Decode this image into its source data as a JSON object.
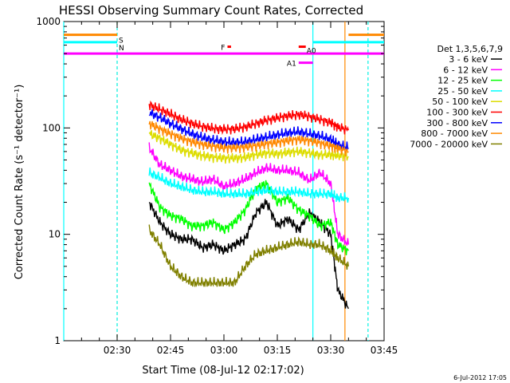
{
  "chart_data": {
    "type": "line",
    "title": "HESSI Observing Summary Count Rates, Corrected",
    "xlabel": "Start Time (08-Jul-12 02:17:02)",
    "ylabel": "Corrected Count Rate (s⁻¹ detector⁻¹)",
    "yscale": "log",
    "ylim": [
      1,
      1000
    ],
    "xlim_minutes": [
      0,
      90
    ],
    "x_tick_labels": [
      "02:30",
      "02:45",
      "03:00",
      "03:15",
      "03:30",
      "03:45"
    ],
    "x_tick_minutes": [
      15,
      30,
      45,
      60,
      75,
      90
    ],
    "y_tick_labels": [
      "1",
      "10",
      "100",
      "1000"
    ],
    "y_tick_values": [
      1,
      10,
      100,
      1000
    ],
    "timestamp": "6-Jul-2012 17:05",
    "legend_title": "Det 1,3,5,6,7,9",
    "legend_position": "right",
    "grid": false,
    "series": [
      {
        "name": "3 - 6 keV",
        "color": "#000000",
        "t": [
          24,
          27,
          30,
          33,
          36,
          39,
          42,
          45,
          48,
          51,
          54,
          57,
          60,
          63,
          66,
          69,
          72,
          75,
          77,
          80
        ],
        "values": [
          20,
          13,
          10,
          9,
          9,
          7.5,
          8,
          7,
          8,
          9,
          16,
          20,
          12,
          14,
          11,
          16,
          13,
          10,
          3,
          2
        ]
      },
      {
        "name": "6 - 12 keV",
        "color": "#ff00ff",
        "t": [
          24,
          27,
          30,
          33,
          36,
          39,
          42,
          45,
          48,
          51,
          54,
          57,
          60,
          63,
          66,
          69,
          72,
          75,
          77,
          80
        ],
        "values": [
          65,
          45,
          40,
          35,
          33,
          31,
          33,
          28,
          30,
          33,
          38,
          42,
          40,
          40,
          38,
          32,
          38,
          30,
          10,
          8
        ]
      },
      {
        "name": "12 - 25 keV",
        "color": "#00ff00",
        "t": [
          24,
          27,
          30,
          33,
          36,
          39,
          42,
          45,
          48,
          51,
          54,
          57,
          60,
          63,
          66,
          69,
          72,
          75,
          77,
          80
        ],
        "values": [
          30,
          18,
          15,
          14,
          12,
          12,
          13,
          11,
          13,
          17,
          27,
          30,
          20,
          22,
          17,
          15,
          12,
          13,
          8,
          7
        ]
      },
      {
        "name": "25 - 50 keV",
        "color": "#00ffff",
        "t": [
          24,
          27,
          30,
          33,
          36,
          39,
          42,
          45,
          48,
          51,
          54,
          57,
          60,
          63,
          66,
          69,
          72,
          75,
          77,
          80
        ],
        "values": [
          38,
          34,
          30,
          28,
          26,
          25,
          25,
          24,
          24,
          24,
          25,
          26,
          25,
          25,
          25,
          24,
          24,
          24,
          22,
          22
        ]
      },
      {
        "name": "50 - 100 keV",
        "color": "#dddd00",
        "t": [
          24,
          27,
          30,
          33,
          36,
          39,
          42,
          45,
          48,
          51,
          54,
          57,
          60,
          63,
          66,
          69,
          72,
          75,
          77,
          80
        ],
        "values": [
          88,
          80,
          70,
          62,
          58,
          55,
          53,
          52,
          52,
          53,
          56,
          58,
          57,
          59,
          60,
          58,
          56,
          56,
          55,
          54
        ]
      },
      {
        "name": "100 - 300 keV",
        "color": "#ff0000",
        "t": [
          24,
          27,
          30,
          33,
          36,
          39,
          42,
          45,
          48,
          51,
          54,
          57,
          60,
          63,
          66,
          69,
          72,
          75,
          77,
          80
        ],
        "values": [
          165,
          150,
          135,
          120,
          110,
          103,
          99,
          97,
          98,
          102,
          110,
          118,
          124,
          130,
          134,
          128,
          120,
          112,
          102,
          95
        ]
      },
      {
        "name": "300 - 800 keV",
        "color": "#0000ff",
        "t": [
          24,
          27,
          30,
          33,
          36,
          39,
          42,
          45,
          48,
          51,
          54,
          57,
          60,
          63,
          66,
          69,
          72,
          75,
          77,
          80
        ],
        "values": [
          140,
          125,
          110,
          98,
          88,
          81,
          77,
          74,
          73,
          74,
          78,
          82,
          86,
          90,
          92,
          88,
          84,
          78,
          70,
          65
        ]
      },
      {
        "name": "800 - 7000 keV",
        "color": "#ff8800",
        "t": [
          24,
          27,
          30,
          33,
          36,
          39,
          42,
          45,
          48,
          51,
          54,
          57,
          60,
          63,
          66,
          69,
          72,
          75,
          77,
          80
        ],
        "values": [
          110,
          98,
          88,
          80,
          74,
          70,
          67,
          65,
          65,
          66,
          68,
          71,
          73,
          76,
          78,
          76,
          72,
          68,
          64,
          60
        ]
      },
      {
        "name": "7000 - 20000 keV",
        "color": "#808000",
        "t": [
          24,
          27,
          30,
          33,
          36,
          39,
          42,
          45,
          48,
          51,
          54,
          57,
          60,
          63,
          66,
          69,
          72,
          75,
          77,
          80
        ],
        "values": [
          11,
          8,
          5,
          4,
          3.5,
          3.5,
          3.5,
          3.5,
          3.5,
          5,
          6.5,
          7,
          7.5,
          8,
          8.5,
          8,
          8,
          7,
          6,
          5
        ]
      }
    ],
    "flag_bars": [
      {
        "label": "S",
        "color": "#ff8800",
        "y": 750,
        "segments": [
          [
            0,
            15
          ],
          [
            80,
            90
          ]
        ]
      },
      {
        "label": "N",
        "color": "#00ffff",
        "y": 640,
        "segments": [
          [
            0,
            15
          ],
          [
            70,
            90
          ]
        ]
      },
      {
        "label": "",
        "color": "#ff00ff",
        "y": 500,
        "segments": [
          [
            0,
            90
          ]
        ]
      },
      {
        "label": "F",
        "color": "#ff0000",
        "y": 580,
        "segments": [
          [
            46,
            47
          ]
        ]
      },
      {
        "label": "A0",
        "color": "#ff0000",
        "y": 580,
        "segments": [
          [
            66,
            68
          ]
        ]
      },
      {
        "label": "A1",
        "color": "#ff00ff",
        "y": 410,
        "segments": [
          [
            66,
            70
          ]
        ]
      }
    ],
    "vertical_lines": [
      {
        "color": "#00ffff",
        "t": 0
      },
      {
        "color": "#ff8800",
        "t": 15,
        "dashed": true
      },
      {
        "color": "#00ffff",
        "t": 15,
        "dashed": true
      },
      {
        "color": "#00ffff",
        "t": 70
      },
      {
        "color": "#ff8800",
        "t": 79
      },
      {
        "color": "#ff8800",
        "t": 85.5,
        "dashed": true
      },
      {
        "color": "#00ffff",
        "t": 85.5,
        "dashed": true
      }
    ]
  }
}
